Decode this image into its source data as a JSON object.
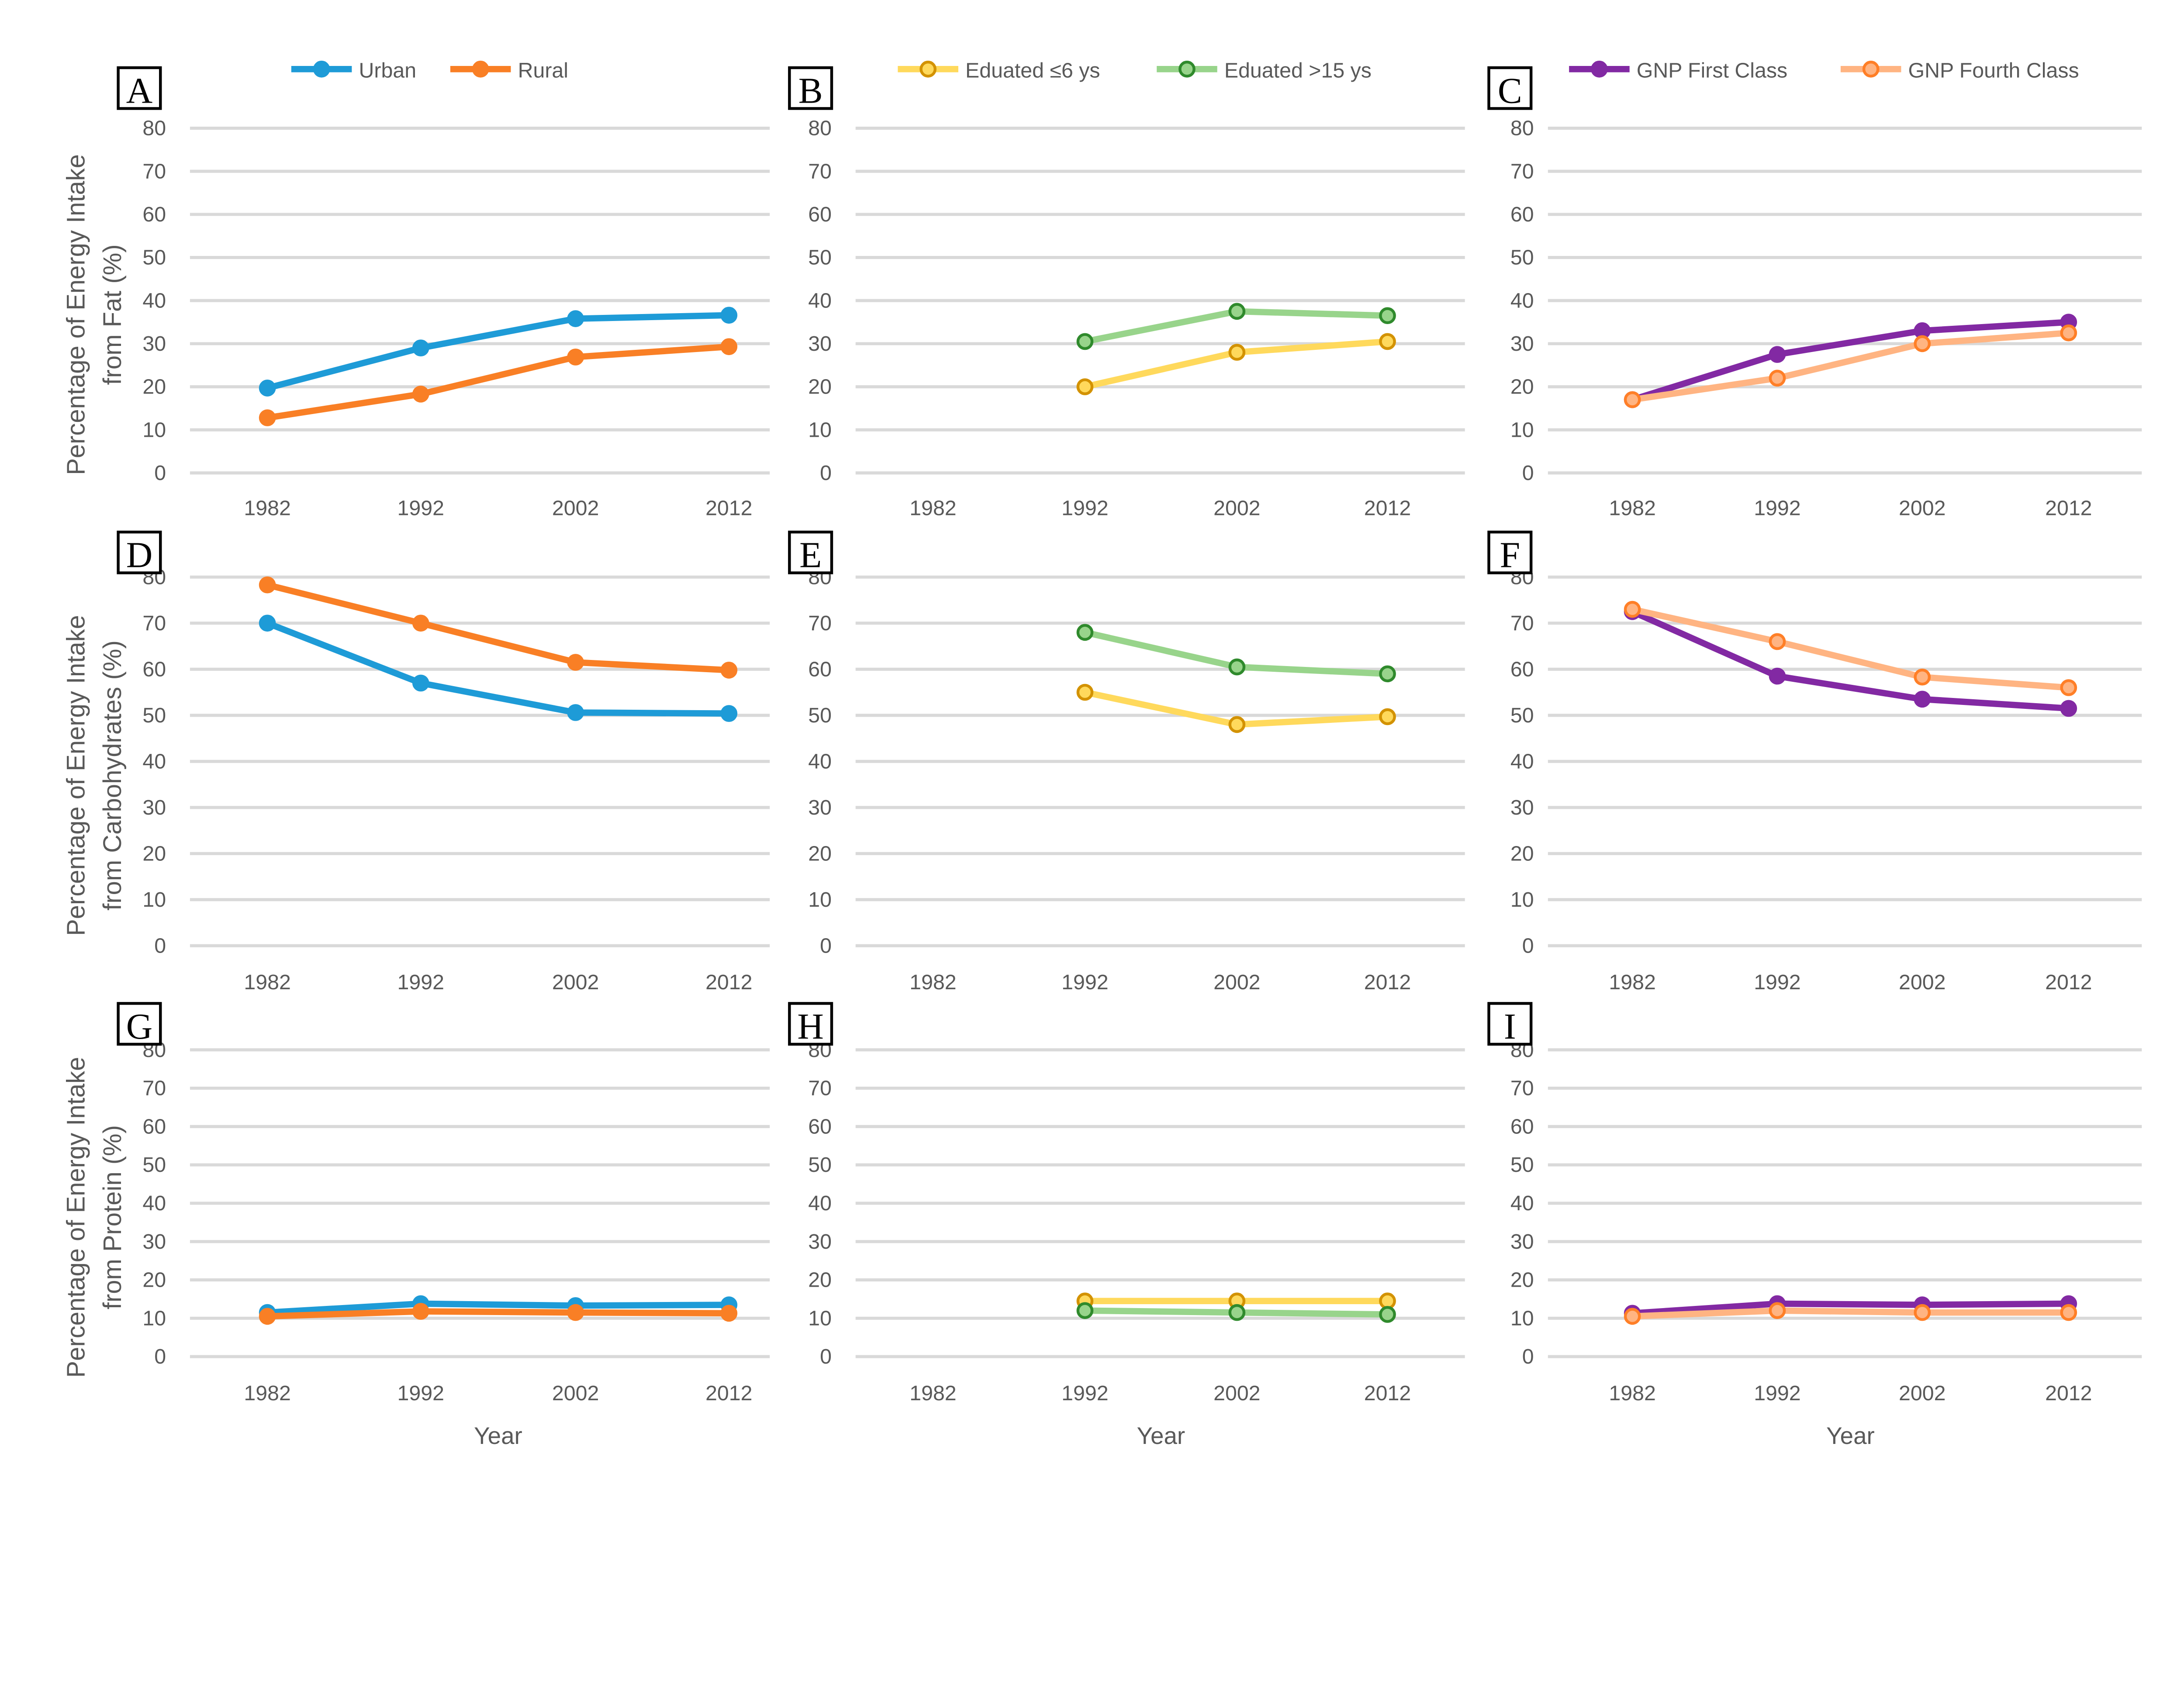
{
  "colors": {
    "urban": "#1E9BD7",
    "rural": "#F97F25",
    "edu_low": "#FFD95C",
    "edu_low_marker": "#D39200",
    "edu_high": "#98D48B",
    "edu_high_marker": "#2F8A2C",
    "gnp_first": "#8229A3",
    "gnp_fourth": "#FFB482",
    "gnp_fourth_marker": "#FF7F27",
    "grid": "#D9D9D9"
  },
  "y_titles": [
    [
      "Percentage of Energy Intake",
      "from Fat (%)"
    ],
    [
      "Percentage of Energy Intake",
      "from Carbohydrates (%)"
    ],
    [
      "Percentage of Energy Intake",
      "from Protein (%)"
    ]
  ],
  "x_title": "Year",
  "chart_data": [
    {
      "panel": "A",
      "type": "line",
      "categories": [
        "1982",
        "1992",
        "2002",
        "2012"
      ],
      "ylim": [
        0,
        80
      ],
      "yticks": [
        "0",
        "10",
        "20",
        "30",
        "40",
        "50",
        "60",
        "70",
        "80"
      ],
      "grid": true,
      "legend": "top",
      "series": [
        {
          "name": "Urban",
          "key": "urban",
          "values": [
            19.7,
            29,
            35.8,
            36.6
          ]
        },
        {
          "name": "Rural",
          "key": "rural",
          "values": [
            12.8,
            18.3,
            26.9,
            29.3
          ]
        }
      ]
    },
    {
      "panel": "B",
      "type": "line",
      "categories": [
        "1982",
        "1992",
        "2002",
        "2012"
      ],
      "ylim": [
        0,
        80
      ],
      "yticks": [
        "0",
        "10",
        "20",
        "30",
        "40",
        "50",
        "60",
        "70",
        "80"
      ],
      "grid": true,
      "legend": "top",
      "series": [
        {
          "name": "Eduated ≤6 ys",
          "key": "edu_low",
          "values": [
            null,
            20,
            28,
            30.5
          ]
        },
        {
          "name": "Eduated >15 ys",
          "key": "edu_high",
          "values": [
            null,
            30.5,
            37.5,
            36.5
          ]
        }
      ]
    },
    {
      "panel": "C",
      "type": "line",
      "categories": [
        "1982",
        "1992",
        "2002",
        "2012"
      ],
      "ylim": [
        0,
        80
      ],
      "yticks": [
        "0",
        "10",
        "20",
        "30",
        "40",
        "50",
        "60",
        "70",
        "80"
      ],
      "grid": true,
      "legend": "top",
      "series": [
        {
          "name": "GNP First Class",
          "key": "gnp_first",
          "values": [
            17,
            27.5,
            33,
            35
          ]
        },
        {
          "name": "GNP Fourth Class",
          "key": "gnp_fourth",
          "values": [
            17,
            22,
            30,
            32.5
          ]
        }
      ]
    },
    {
      "panel": "D",
      "type": "line",
      "categories": [
        "1982",
        "1992",
        "2002",
        "2012"
      ],
      "ylim": [
        0,
        80
      ],
      "yticks": [
        "0",
        "10",
        "20",
        "30",
        "40",
        "50",
        "60",
        "70",
        "80"
      ],
      "grid": true,
      "series": [
        {
          "key": "urban",
          "values": [
            70,
            57,
            50.6,
            50.4
          ]
        },
        {
          "key": "rural",
          "values": [
            78.3,
            70,
            61.5,
            59.8
          ]
        }
      ]
    },
    {
      "panel": "E",
      "type": "line",
      "categories": [
        "1982",
        "1992",
        "2002",
        "2012"
      ],
      "ylim": [
        0,
        80
      ],
      "yticks": [
        "0",
        "10",
        "20",
        "30",
        "40",
        "50",
        "60",
        "70",
        "80"
      ],
      "grid": true,
      "series": [
        {
          "key": "edu_low",
          "values": [
            null,
            55,
            48,
            49.7
          ]
        },
        {
          "key": "edu_high",
          "values": [
            null,
            68,
            60.5,
            59
          ]
        }
      ]
    },
    {
      "panel": "F",
      "type": "line",
      "categories": [
        "1982",
        "1992",
        "2002",
        "2012"
      ],
      "ylim": [
        0,
        80
      ],
      "yticks": [
        "0",
        "10",
        "20",
        "30",
        "40",
        "50",
        "60",
        "70",
        "80"
      ],
      "grid": true,
      "series": [
        {
          "key": "gnp_first",
          "values": [
            72.5,
            58.5,
            53.5,
            51.5
          ]
        },
        {
          "key": "gnp_fourth",
          "values": [
            73,
            66,
            58.3,
            56
          ]
        }
      ]
    },
    {
      "panel": "G",
      "type": "line",
      "categories": [
        "1982",
        "1992",
        "2002",
        "2012"
      ],
      "ylim": [
        0,
        80
      ],
      "yticks": [
        "0",
        "10",
        "20",
        "30",
        "40",
        "50",
        "60",
        "70",
        "80"
      ],
      "grid": true,
      "series": [
        {
          "key": "urban",
          "values": [
            11.5,
            13.8,
            13.3,
            13.5
          ]
        },
        {
          "key": "rural",
          "values": [
            10.5,
            11.8,
            11.5,
            11.3
          ]
        }
      ]
    },
    {
      "panel": "H",
      "type": "line",
      "categories": [
        "1982",
        "1992",
        "2002",
        "2012"
      ],
      "ylim": [
        0,
        80
      ],
      "yticks": [
        "0",
        "10",
        "20",
        "30",
        "40",
        "50",
        "60",
        "70",
        "80"
      ],
      "grid": true,
      "series": [
        {
          "key": "edu_low",
          "values": [
            null,
            14.5,
            14.5,
            14.5
          ]
        },
        {
          "key": "edu_high",
          "values": [
            null,
            12,
            11.5,
            11
          ]
        }
      ]
    },
    {
      "panel": "I",
      "type": "line",
      "categories": [
        "1982",
        "1992",
        "2002",
        "2012"
      ],
      "ylim": [
        0,
        80
      ],
      "yticks": [
        "0",
        "10",
        "20",
        "30",
        "40",
        "50",
        "60",
        "70",
        "80"
      ],
      "grid": true,
      "series": [
        {
          "key": "gnp_first",
          "values": [
            11.3,
            13.8,
            13.5,
            13.8
          ]
        },
        {
          "key": "gnp_fourth",
          "values": [
            10.5,
            12,
            11.5,
            11.5
          ]
        }
      ]
    }
  ]
}
